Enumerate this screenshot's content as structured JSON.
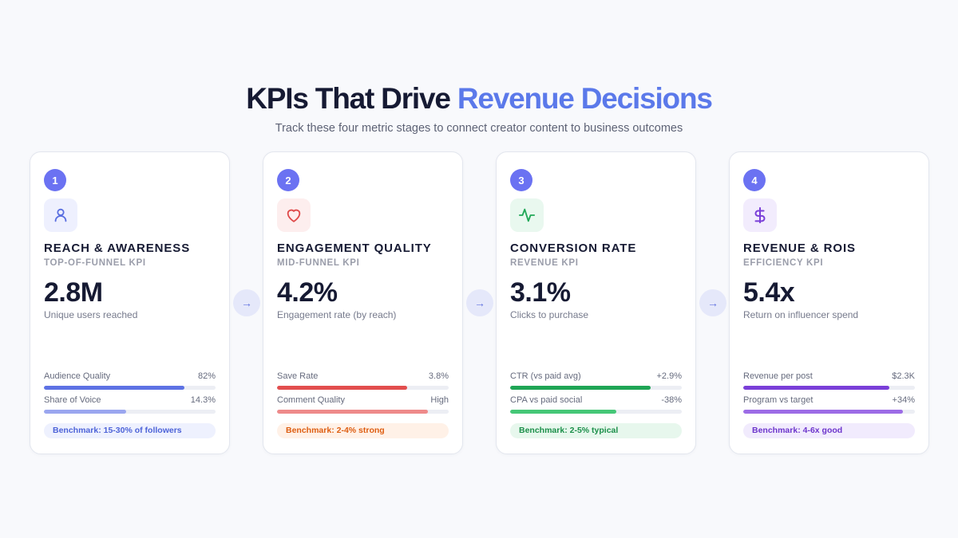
{
  "header": {
    "title_main": "KPIs That Drive ",
    "title_accent": "Revenue Decisions",
    "subtitle": "Track these four metric stages to connect creator content to business outcomes"
  },
  "colors": {
    "title_accent": "#5b79ea",
    "step_badge": "#6b72f2"
  },
  "arrow_glyph": "→",
  "cards": [
    {
      "number": "1",
      "icon": "user-icon",
      "name": "REACH & AWARENESS",
      "tier": "TOP-OF-FUNNEL KPI",
      "value": "2.8M",
      "description": "Unique users reached",
      "metrics": [
        {
          "label": "Audience Quality",
          "value": "82%",
          "fill": 0.82
        },
        {
          "label": "Share of Voice",
          "value": "14.3%",
          "fill": 0.48
        }
      ],
      "benchmark": "Benchmark: 15-30% of followers",
      "theme": {
        "icon_bg": "#eef0fe",
        "icon_color": "#5a6fe0",
        "bar1": "#5d72e4",
        "bar2": "#9aa6ef",
        "bench_bg": "#eef1fe",
        "bench_text": "#4d63d8"
      }
    },
    {
      "number": "2",
      "icon": "heart-icon",
      "name": "ENGAGEMENT QUALITY",
      "tier": "MID-FUNNEL KPI",
      "value": "4.2%",
      "description": "Engagement rate (by reach)",
      "metrics": [
        {
          "label": "Save Rate",
          "value": "3.8%",
          "fill": 0.76
        },
        {
          "label": "Comment Quality",
          "value": "High",
          "fill": 0.88
        }
      ],
      "benchmark": "Benchmark: 2-4% strong",
      "theme": {
        "icon_bg": "#fdeeee",
        "icon_color": "#df4a4a",
        "bar1": "#e24e4e",
        "bar2": "#ee8a8a",
        "bench_bg": "#fff1e7",
        "bench_text": "#de5e12"
      }
    },
    {
      "number": "3",
      "icon": "activity-icon",
      "name": "CONVERSION RATE",
      "tier": "REVENUE KPI",
      "value": "3.1%",
      "description": "Clicks to purchase",
      "metrics": [
        {
          "label": "CTR (vs paid avg)",
          "value": "+2.9%",
          "fill": 0.82
        },
        {
          "label": "CPA vs paid social",
          "value": "-38%",
          "fill": 0.62
        }
      ],
      "benchmark": "Benchmark: 2-5% typical",
      "theme": {
        "icon_bg": "#e9f8ef",
        "icon_color": "#22a858",
        "bar1": "#1fa555",
        "bar2": "#45c777",
        "bench_bg": "#e7f7ed",
        "bench_text": "#1c8f4a"
      }
    },
    {
      "number": "4",
      "icon": "dollar-icon",
      "name": "REVENUE & ROIS",
      "tier": "EFFICIENCY KPI",
      "value": "5.4x",
      "description": "Return on influencer spend",
      "metrics": [
        {
          "label": "Revenue per post",
          "value": "$2.3K",
          "fill": 0.85
        },
        {
          "label": "Program vs target",
          "value": "+34%",
          "fill": 0.93
        }
      ],
      "benchmark": "Benchmark: 4-6x good",
      "theme": {
        "icon_bg": "#f2ecfd",
        "icon_color": "#7a3fd8",
        "bar1": "#7a3fd8",
        "bar2": "#9c6ce6",
        "bench_bg": "#f1ebfd",
        "bench_text": "#6d35cc"
      }
    }
  ]
}
